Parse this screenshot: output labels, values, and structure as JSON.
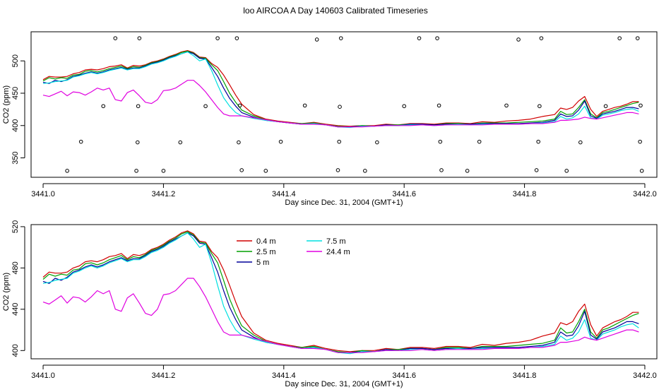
{
  "page_title": "loo AIRCOA A  Day 140603  Calibrated Timeseries",
  "colors": {
    "0.4 m": "#d00000",
    "2.5 m": "#00a000",
    "5 m": "#000099",
    "7.5 m": "#00e0e0",
    "24.4 m": "#e000e0"
  },
  "chart_data": [
    {
      "type": "line",
      "xlabel": "Day since Dec. 31, 2004 (GMT+1)",
      "ylabel": "CO2 (ppm)",
      "xlim": [
        3440.98,
        3442.02
      ],
      "ylim": [
        320,
        545
      ],
      "xticks": [
        3441.0,
        3441.2,
        3441.4,
        3441.6,
        3441.8,
        3442.0
      ],
      "xtick_labels": [
        "3441.0",
        "3441.2",
        "3441.4",
        "3441.6",
        "3441.8",
        "3442.0"
      ],
      "yticks": [
        350,
        400,
        450,
        500
      ],
      "ytick_labels": [
        "350",
        "400",
        "450",
        "500"
      ],
      "legend": null,
      "series_source": "shared",
      "qc_points": [
        [
          3441.04,
          330
        ],
        [
          3441.063,
          375
        ],
        [
          3441.1,
          430
        ],
        [
          3441.12,
          535
        ],
        [
          3441.155,
          330
        ],
        [
          3441.157,
          374
        ],
        [
          3441.158,
          430
        ],
        [
          3441.16,
          535
        ],
        [
          3441.2,
          330
        ],
        [
          3441.228,
          374
        ],
        [
          3441.27,
          430
        ],
        [
          3441.29,
          535
        ],
        [
          3441.322,
          535
        ],
        [
          3441.325,
          374
        ],
        [
          3441.327,
          431
        ],
        [
          3441.33,
          331
        ],
        [
          3441.37,
          330
        ],
        [
          3441.395,
          375
        ],
        [
          3441.435,
          431
        ],
        [
          3441.455,
          533
        ],
        [
          3441.49,
          331
        ],
        [
          3441.492,
          375
        ],
        [
          3441.493,
          429
        ],
        [
          3441.495,
          535
        ],
        [
          3441.535,
          330
        ],
        [
          3441.555,
          374
        ],
        [
          3441.6,
          430
        ],
        [
          3441.625,
          535
        ],
        [
          3441.655,
          535
        ],
        [
          3441.658,
          431
        ],
        [
          3441.66,
          375
        ],
        [
          3441.662,
          331
        ],
        [
          3441.705,
          330
        ],
        [
          3441.725,
          375
        ],
        [
          3441.77,
          431
        ],
        [
          3441.79,
          533
        ],
        [
          3441.82,
          331
        ],
        [
          3441.823,
          375
        ],
        [
          3441.825,
          430
        ],
        [
          3441.828,
          535
        ],
        [
          3441.87,
          330
        ],
        [
          3441.893,
          374
        ],
        [
          3441.935,
          430
        ],
        [
          3441.958,
          535
        ],
        [
          3441.988,
          535
        ],
        [
          3441.992,
          375
        ],
        [
          3441.993,
          431
        ],
        [
          3441.995,
          330
        ]
      ]
    },
    {
      "type": "line",
      "xlabel": "Day since Dec. 31, 2004 (GMT+1)",
      "ylabel": "CO2 (ppm)",
      "xlim": [
        3440.98,
        3442.02
      ],
      "ylim": [
        392,
        522
      ],
      "xticks": [
        3441.0,
        3441.2,
        3441.4,
        3441.6,
        3441.8,
        3442.0
      ],
      "xtick_labels": [
        "3441.0",
        "3441.2",
        "3441.4",
        "3441.6",
        "3441.8",
        "3442.0"
      ],
      "yticks": [
        400,
        440,
        480,
        520
      ],
      "ytick_labels": [
        "400",
        "440",
        "480",
        "520"
      ],
      "legend": {
        "position": "top-center",
        "columns": [
          [
            "0.4 m",
            "2.5 m",
            "5 m"
          ],
          [
            "7.5 m",
            "24.4 m"
          ]
        ]
      },
      "series_source": "shared",
      "qc_points": []
    }
  ],
  "series": [
    {
      "name": "0.4 m",
      "x": [
        3441.0,
        3441.01,
        3441.02,
        3441.03,
        3441.04,
        3441.05,
        3441.06,
        3441.07,
        3441.08,
        3441.09,
        3441.1,
        3441.11,
        3441.12,
        3441.13,
        3441.14,
        3441.15,
        3441.16,
        3441.17,
        3441.18,
        3441.19,
        3441.2,
        3441.21,
        3441.22,
        3441.23,
        3441.24,
        3441.25,
        3441.26,
        3441.27,
        3441.28,
        3441.29,
        3441.3,
        3441.31,
        3441.32,
        3441.33,
        3441.35,
        3441.37,
        3441.39,
        3441.41,
        3441.43,
        3441.45,
        3441.47,
        3441.49,
        3441.51,
        3441.53,
        3441.55,
        3441.57,
        3441.59,
        3441.61,
        3441.63,
        3441.65,
        3441.67,
        3441.69,
        3441.71,
        3441.73,
        3441.75,
        3441.77,
        3441.79,
        3441.81,
        3441.83,
        3441.85,
        3441.86,
        3441.87,
        3441.88,
        3441.89,
        3441.9,
        3441.91,
        3441.92,
        3441.93,
        3441.94,
        3441.95,
        3441.96,
        3441.97,
        3441.98,
        3441.99
      ],
      "y": [
        471,
        476,
        475,
        475,
        476,
        480,
        482,
        486,
        487,
        486,
        488,
        491,
        492,
        494,
        489,
        493,
        492,
        494,
        498,
        500,
        503,
        507,
        510,
        514,
        516,
        513,
        506,
        505,
        496,
        490,
        478,
        463,
        447,
        433,
        417,
        410,
        407,
        405,
        403,
        405,
        402,
        400,
        399,
        400,
        400,
        402,
        401,
        403,
        403,
        402,
        404,
        404,
        403,
        406,
        405,
        407,
        408,
        410,
        414,
        417,
        427,
        425,
        428,
        438,
        445,
        425,
        414,
        422,
        425,
        428,
        430,
        433,
        437,
        437
      ]
    },
    {
      "name": "2.5 m",
      "x": [
        3441.0,
        3441.01,
        3441.02,
        3441.03,
        3441.04,
        3441.05,
        3441.06,
        3441.07,
        3441.08,
        3441.09,
        3441.1,
        3441.11,
        3441.12,
        3441.13,
        3441.14,
        3441.15,
        3441.16,
        3441.17,
        3441.18,
        3441.19,
        3441.2,
        3441.21,
        3441.22,
        3441.23,
        3441.24,
        3441.25,
        3441.26,
        3441.27,
        3441.28,
        3441.29,
        3441.3,
        3441.31,
        3441.32,
        3441.33,
        3441.35,
        3441.37,
        3441.39,
        3441.41,
        3441.43,
        3441.45,
        3441.47,
        3441.49,
        3441.51,
        3441.53,
        3441.55,
        3441.57,
        3441.59,
        3441.61,
        3441.63,
        3441.65,
        3441.67,
        3441.69,
        3441.71,
        3441.73,
        3441.75,
        3441.77,
        3441.79,
        3441.81,
        3441.83,
        3441.85,
        3441.86,
        3441.87,
        3441.88,
        3441.89,
        3441.9,
        3441.91,
        3441.92,
        3441.93,
        3441.94,
        3441.95,
        3441.96,
        3441.97,
        3441.98,
        3441.99
      ],
      "y": [
        469,
        474,
        472,
        474,
        473,
        478,
        479,
        484,
        485,
        483,
        485,
        488,
        490,
        492,
        488,
        491,
        490,
        493,
        497,
        499,
        502,
        506,
        509,
        513,
        515,
        512,
        505,
        504,
        494,
        485,
        468,
        450,
        436,
        424,
        415,
        409,
        406,
        404,
        403,
        404,
        401,
        399,
        398,
        400,
        399,
        401,
        401,
        402,
        402,
        401,
        403,
        403,
        402,
        404,
        404,
        404,
        405,
        406,
        407,
        410,
        422,
        417,
        418,
        428,
        440,
        418,
        412,
        420,
        422,
        425,
        428,
        431,
        434,
        436
      ]
    },
    {
      "name": "5 m",
      "x": [
        3441.0,
        3441.01,
        3441.02,
        3441.03,
        3441.04,
        3441.05,
        3441.06,
        3441.07,
        3441.08,
        3441.09,
        3441.1,
        3441.11,
        3441.12,
        3441.13,
        3441.14,
        3441.15,
        3441.16,
        3441.17,
        3441.18,
        3441.19,
        3441.2,
        3441.21,
        3441.22,
        3441.23,
        3441.24,
        3441.25,
        3441.26,
        3441.27,
        3441.28,
        3441.29,
        3441.3,
        3441.31,
        3441.32,
        3441.33,
        3441.35,
        3441.37,
        3441.39,
        3441.41,
        3441.43,
        3441.45,
        3441.47,
        3441.49,
        3441.51,
        3441.53,
        3441.55,
        3441.57,
        3441.59,
        3441.61,
        3441.63,
        3441.65,
        3441.67,
        3441.69,
        3441.71,
        3441.73,
        3441.75,
        3441.77,
        3441.79,
        3441.81,
        3441.83,
        3441.85,
        3441.86,
        3441.87,
        3441.88,
        3441.89,
        3441.9,
        3441.91,
        3441.92,
        3441.93,
        3441.94,
        3441.95,
        3441.96,
        3441.97,
        3441.98,
        3441.99
      ],
      "y": [
        467,
        465,
        470,
        468,
        471,
        476,
        478,
        481,
        483,
        481,
        483,
        486,
        488,
        490,
        487,
        489,
        489,
        492,
        496,
        498,
        501,
        505,
        508,
        511,
        514,
        511,
        504,
        503,
        490,
        476,
        458,
        442,
        430,
        420,
        413,
        408,
        406,
        404,
        402,
        403,
        401,
        398,
        398,
        399,
        399,
        401,
        400,
        402,
        402,
        401,
        402,
        402,
        402,
        403,
        403,
        403,
        403,
        404,
        405,
        408,
        418,
        414,
        415,
        424,
        438,
        415,
        411,
        418,
        420,
        422,
        425,
        428,
        428,
        426
      ]
    },
    {
      "name": "7.5 m",
      "x": [
        3441.0,
        3441.01,
        3441.02,
        3441.03,
        3441.04,
        3441.05,
        3441.06,
        3441.07,
        3441.08,
        3441.09,
        3441.1,
        3441.11,
        3441.12,
        3441.13,
        3441.14,
        3441.15,
        3441.16,
        3441.17,
        3441.18,
        3441.19,
        3441.2,
        3441.21,
        3441.22,
        3441.23,
        3441.24,
        3441.25,
        3441.26,
        3441.27,
        3441.28,
        3441.29,
        3441.3,
        3441.31,
        3441.32,
        3441.33,
        3441.35,
        3441.37,
        3441.39,
        3441.41,
        3441.43,
        3441.45,
        3441.47,
        3441.49,
        3441.51,
        3441.53,
        3441.55,
        3441.57,
        3441.59,
        3441.61,
        3441.63,
        3441.65,
        3441.67,
        3441.69,
        3441.71,
        3441.73,
        3441.75,
        3441.77,
        3441.79,
        3441.81,
        3441.83,
        3441.85,
        3441.86,
        3441.87,
        3441.88,
        3441.89,
        3441.9,
        3441.91,
        3441.92,
        3441.93,
        3441.94,
        3441.95,
        3441.96,
        3441.97,
        3441.98,
        3441.99
      ],
      "y": [
        465,
        466,
        468,
        469,
        470,
        475,
        477,
        480,
        482,
        480,
        482,
        485,
        487,
        489,
        486,
        488,
        488,
        491,
        495,
        497,
        500,
        504,
        507,
        511,
        514,
        508,
        500,
        503,
        485,
        463,
        443,
        430,
        420,
        415,
        411,
        408,
        406,
        404,
        402,
        403,
        401,
        398,
        397,
        399,
        399,
        400,
        400,
        401,
        401,
        400,
        401,
        402,
        401,
        402,
        402,
        402,
        402,
        403,
        404,
        406,
        414,
        410,
        412,
        418,
        430,
        412,
        410,
        416,
        418,
        420,
        423,
        425,
        426,
        422
      ]
    },
    {
      "name": "24.4 m",
      "x": [
        3441.0,
        3441.01,
        3441.02,
        3441.03,
        3441.04,
        3441.05,
        3441.06,
        3441.07,
        3441.08,
        3441.09,
        3441.1,
        3441.11,
        3441.12,
        3441.13,
        3441.14,
        3441.15,
        3441.16,
        3441.17,
        3441.18,
        3441.19,
        3441.2,
        3441.21,
        3441.22,
        3441.23,
        3441.24,
        3441.25,
        3441.26,
        3441.27,
        3441.28,
        3441.29,
        3441.3,
        3441.31,
        3441.32,
        3441.33,
        3441.35,
        3441.37,
        3441.39,
        3441.41,
        3441.43,
        3441.45,
        3441.47,
        3441.49,
        3441.51,
        3441.53,
        3441.55,
        3441.57,
        3441.59,
        3441.61,
        3441.63,
        3441.65,
        3441.67,
        3441.69,
        3441.71,
        3441.73,
        3441.75,
        3441.77,
        3441.79,
        3441.81,
        3441.83,
        3441.85,
        3441.86,
        3441.87,
        3441.88,
        3441.89,
        3441.9,
        3441.91,
        3441.92,
        3441.93,
        3441.94,
        3441.95,
        3441.96,
        3441.97,
        3441.98,
        3441.99
      ],
      "y": [
        447,
        445,
        449,
        453,
        446,
        452,
        451,
        447,
        452,
        458,
        455,
        458,
        440,
        438,
        451,
        455,
        446,
        436,
        434,
        440,
        454,
        455,
        458,
        464,
        470,
        470,
        462,
        452,
        440,
        428,
        418,
        415,
        415,
        415,
        412,
        409,
        406,
        404,
        402,
        402,
        401,
        398,
        398,
        398,
        399,
        400,
        400,
        400,
        401,
        400,
        401,
        401,
        401,
        401,
        402,
        402,
        402,
        403,
        403,
        405,
        408,
        408,
        409,
        410,
        413,
        411,
        410,
        412,
        414,
        416,
        418,
        420,
        420,
        418
      ]
    }
  ]
}
